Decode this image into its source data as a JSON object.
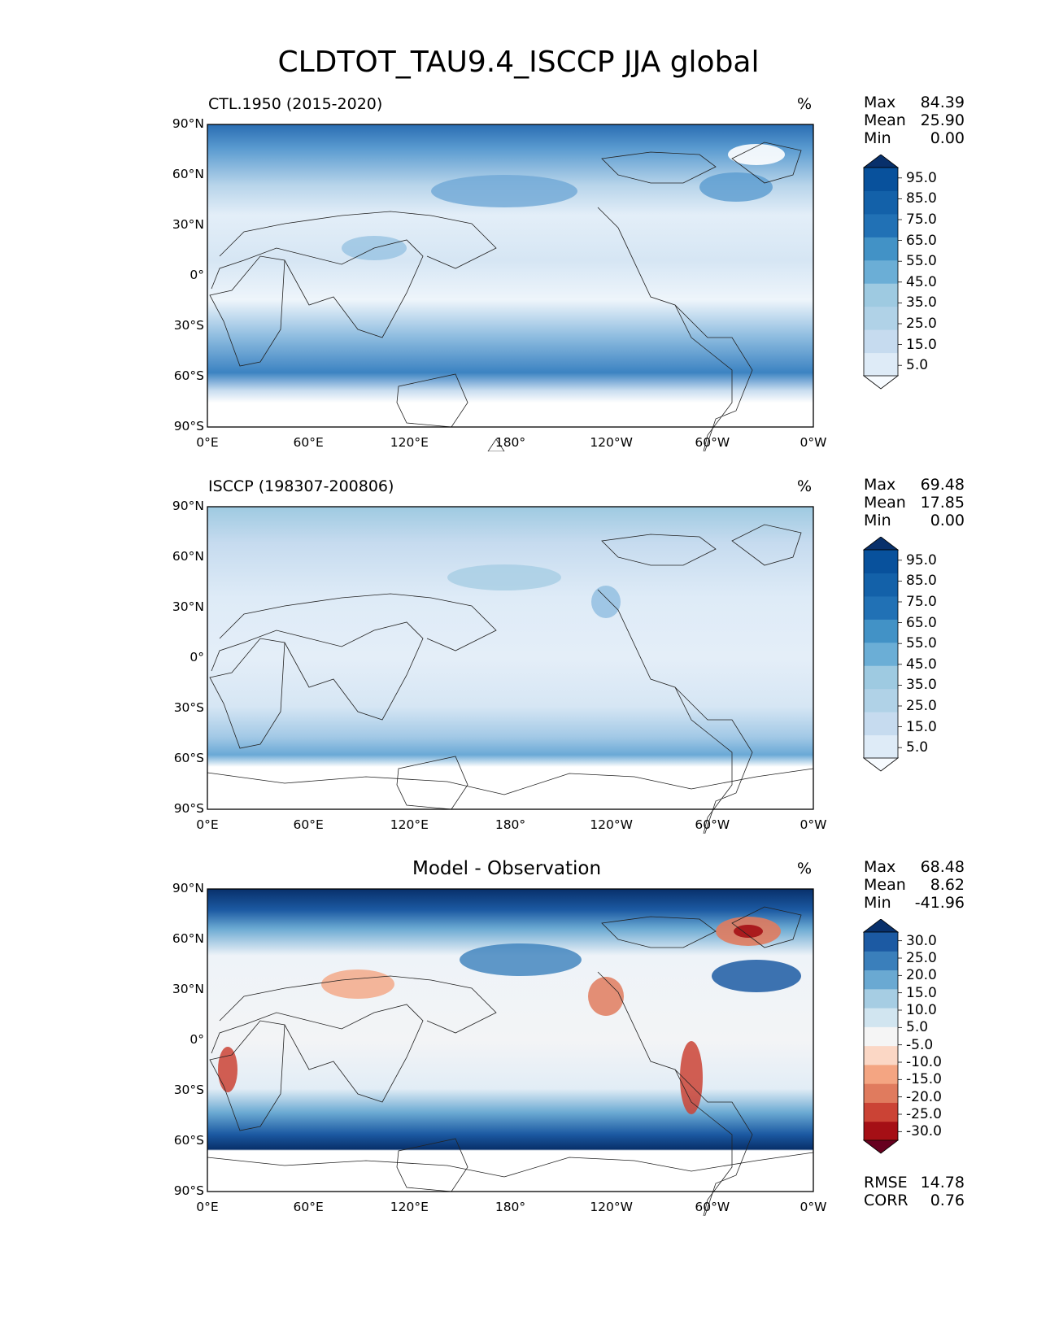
{
  "title": "CLDTOT_TAU9.4_ISCCP JJA global",
  "lat_labels": [
    "90°N",
    "60°N",
    "30°N",
    "0°",
    "30°S",
    "60°S",
    "90°S"
  ],
  "lon_labels": [
    "0°E",
    "60°E",
    "120°E",
    "180°",
    "120°W",
    "60°W",
    "0°W"
  ],
  "panels": [
    {
      "id": "model",
      "title": "CTL.1950 (2015-2020)",
      "unit": "%",
      "stats": {
        "max_label": "Max",
        "max": "84.39",
        "mean_label": "Mean",
        "mean": "25.90",
        "min_label": "Min",
        "min": "0.00"
      },
      "colorbar": {
        "ticks": [
          "95.0",
          "85.0",
          "75.0",
          "65.0",
          "55.0",
          "45.0",
          "35.0",
          "25.0",
          "15.0",
          "5.0"
        ],
        "colors": [
          "#f7fbff",
          "#deebf7",
          "#c6dbef",
          "#b0d2e7",
          "#9ecae1",
          "#6baed6",
          "#4292c6",
          "#2171b5",
          "#1361a9",
          "#08519c",
          "#08306b"
        ]
      }
    },
    {
      "id": "obs",
      "title": "ISCCP (198307-200806)",
      "unit": "%",
      "stats": {
        "max_label": "Max",
        "max": "69.48",
        "mean_label": "Mean",
        "mean": "17.85",
        "min_label": "Min",
        "min": "0.00"
      },
      "colorbar": {
        "ticks": [
          "95.0",
          "85.0",
          "75.0",
          "65.0",
          "55.0",
          "45.0",
          "35.0",
          "25.0",
          "15.0",
          "5.0"
        ],
        "colors": [
          "#f7fbff",
          "#deebf7",
          "#c6dbef",
          "#b0d2e7",
          "#9ecae1",
          "#6baed6",
          "#4292c6",
          "#2171b5",
          "#1361a9",
          "#08519c",
          "#08306b"
        ]
      }
    },
    {
      "id": "diff",
      "title": "Model - Observation",
      "unit": "%",
      "stats": {
        "max_label": "Max",
        "max": "68.48",
        "mean_label": "Mean",
        "mean": "8.62",
        "min_label": "Min",
        "min": "-41.96"
      },
      "metrics": {
        "rmse_label": "RMSE",
        "rmse": "14.78",
        "corr_label": "CORR",
        "corr": "0.76"
      },
      "colorbar": {
        "ticks": [
          "30.0",
          "25.0",
          "20.0",
          "15.0",
          "10.0",
          "5.0",
          "-5.0",
          "-10.0",
          "-15.0",
          "-20.0",
          "-25.0",
          "-30.0"
        ],
        "colors": [
          "#67001f",
          "#a50f15",
          "#cb4335",
          "#e07b5e",
          "#f4a582",
          "#fbd7c5",
          "#f5f5f5",
          "#d1e5f0",
          "#a6cde3",
          "#6aa9d2",
          "#3a7fbb",
          "#1c5aa3",
          "#08306b"
        ]
      }
    }
  ]
}
